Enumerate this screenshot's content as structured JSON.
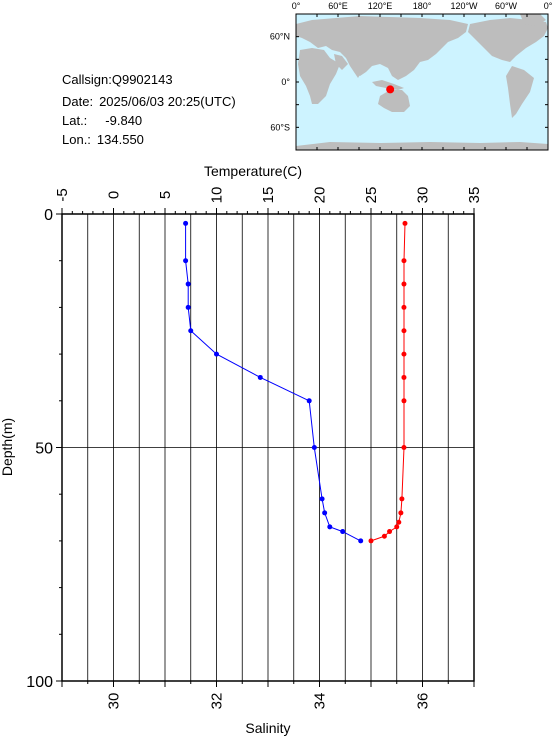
{
  "station": {
    "callsign_label": "Callsign:",
    "callsign": "Q9902143",
    "date_label": "Date:",
    "date": "2025/06/03 20:25(UTC)",
    "lat_label": "Lat.:",
    "lat": "-9.840",
    "lon_label": "Lon.:",
    "lon": "134.550"
  },
  "map": {
    "top_labels": [
      "0°",
      "60°E",
      "120°E",
      "180°",
      "120°W",
      "60°W",
      "0°"
    ],
    "left_labels": [
      "60°N",
      "0°",
      "60°S"
    ],
    "ocean_color": "#cdf3ff",
    "land_color": "#bdbdbd",
    "marker_color": "#ff0000"
  },
  "chart_data": {
    "type": "line",
    "top_axis": {
      "label": "Temperature(C)",
      "ticks": [
        "-5",
        "0",
        "5",
        "10",
        "15",
        "20",
        "25",
        "30",
        "35"
      ],
      "range": [
        -5,
        35
      ]
    },
    "bottom_axis": {
      "label": "Salinity",
      "ticks": [
        "30",
        "32",
        "34",
        "36"
      ],
      "range": [
        29,
        37
      ]
    },
    "y_axis": {
      "label": "Depth(m)",
      "ticks": [
        "0",
        "50",
        "100"
      ],
      "range": [
        0,
        100
      ],
      "inverted": true
    },
    "grid": true,
    "series": [
      {
        "color": "#ff0000",
        "axis": "temperature",
        "points": [
          {
            "x": 28.3,
            "y": 2
          },
          {
            "x": 28.2,
            "y": 10
          },
          {
            "x": 28.2,
            "y": 15
          },
          {
            "x": 28.2,
            "y": 20
          },
          {
            "x": 28.2,
            "y": 25
          },
          {
            "x": 28.2,
            "y": 30
          },
          {
            "x": 28.2,
            "y": 35
          },
          {
            "x": 28.2,
            "y": 40
          },
          {
            "x": 28.2,
            "y": 50
          },
          {
            "x": 28.0,
            "y": 61
          },
          {
            "x": 27.9,
            "y": 64
          },
          {
            "x": 27.7,
            "y": 66
          },
          {
            "x": 27.5,
            "y": 67
          },
          {
            "x": 26.8,
            "y": 68
          },
          {
            "x": 26.3,
            "y": 69
          },
          {
            "x": 25.0,
            "y": 70
          }
        ]
      },
      {
        "color": "#0000ff",
        "axis": "salinity",
        "points": [
          {
            "x": 31.4,
            "y": 2
          },
          {
            "x": 31.4,
            "y": 10
          },
          {
            "x": 31.45,
            "y": 15
          },
          {
            "x": 31.45,
            "y": 20
          },
          {
            "x": 31.5,
            "y": 25
          },
          {
            "x": 32.0,
            "y": 30
          },
          {
            "x": 32.85,
            "y": 35
          },
          {
            "x": 33.8,
            "y": 40
          },
          {
            "x": 33.9,
            "y": 50
          },
          {
            "x": 34.05,
            "y": 61
          },
          {
            "x": 34.1,
            "y": 64
          },
          {
            "x": 34.2,
            "y": 67
          },
          {
            "x": 34.45,
            "y": 68
          },
          {
            "x": 34.8,
            "y": 70
          }
        ]
      }
    ]
  }
}
